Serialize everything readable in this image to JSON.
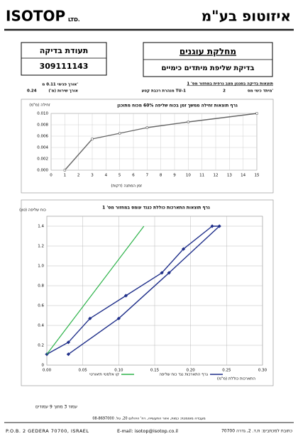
{
  "header": {
    "company_en": "ISOTOP",
    "company_en_suffix": "LTD.",
    "company_he": "איזוטופ בע\"מ"
  },
  "department_box": {
    "title": "מחלקת עוגנים",
    "subtitle": "בדיקת שליפת מיתדים כימיים"
  },
  "certificate_box": {
    "title": "תעודת בדיקה",
    "number": "309111143"
  },
  "info": {
    "heading": "תוצאות בדיקה בסגנון מצב גרפית במחזור מס' 1",
    "inner_length": "אורך פנימי 0.11 מ'",
    "service_length_label": "אורך שירות (מ')",
    "service_length": "0.24",
    "anchor_label": "מיתד כימי מס'",
    "anchor_number": "2",
    "site": "מנהרת רכבת קטע TU-1"
  },
  "charts": [
    {
      "type": "line",
      "title": "גרף תוצאות זחילה ממשך זמן בכוח שליפה 60% מכוח מתוכנן",
      "ylabel": "זחילה (מ\"מ)",
      "xlabel": "זמן המתנה (דקות)",
      "xlim": [
        0,
        15
      ],
      "xticks": [
        0,
        1,
        2,
        3,
        4,
        5,
        6,
        7,
        8,
        9,
        10,
        11,
        12,
        13,
        14,
        15
      ],
      "ylim": [
        0,
        0.01
      ],
      "yticks": [
        {
          "value": 0,
          "label": "0.000"
        },
        {
          "value": 0.002,
          "label": "0.002"
        },
        {
          "value": 0.004,
          "label": "0.004"
        },
        {
          "value": 0.006,
          "label": "0.006"
        },
        {
          "value": 0.008,
          "label": "0.008"
        },
        {
          "value": 0.01,
          "label": "0.010"
        }
      ],
      "grid": true,
      "series": [
        {
          "color": "#666666",
          "x": [
            1,
            3,
            5,
            7,
            10,
            15
          ],
          "values": [
            0,
            0.0055,
            0.0065,
            0.0075,
            0.0085,
            0.01
          ]
        }
      ]
    },
    {
      "type": "line",
      "title": "גרף תוצאות התארכות כוללת כנגד עומס במחזור מס' 1",
      "ylabel": "כוח שליפה (טון)",
      "xlabel": "התארכות כוללת (מ\"מ)",
      "xlim": [
        0,
        0.3
      ],
      "xticks": [
        {
          "value": 0,
          "label": "0.00"
        },
        {
          "value": 0.05,
          "label": "0.05"
        },
        {
          "value": 0.1,
          "label": "0.10"
        },
        {
          "value": 0.15,
          "label": "0.15"
        },
        {
          "value": 0.2,
          "label": "0.20"
        },
        {
          "value": 0.25,
          "label": "0.25"
        },
        {
          "value": 0.3,
          "label": "0.30"
        }
      ],
      "ylim": [
        0,
        1.5
      ],
      "yticks": [
        0,
        0.2,
        0.4,
        0.6,
        0.8,
        {
          "value": 1,
          "label": "1.0"
        },
        1.2,
        1.4
      ],
      "grid": true,
      "series": [
        {
          "name": "גרף התארכות נגד כוח שליפה",
          "color": "#1f2f8a",
          "x": [
            0,
            0.03,
            0.06,
            0.11,
            0.16,
            0.19,
            0.23,
            0.24,
            0.17,
            0.1,
            0.03
          ],
          "values": [
            0.11,
            0.23,
            0.47,
            0.7,
            0.93,
            1.17,
            1.4,
            1.4,
            0.93,
            0.47,
            0.11
          ]
        },
        {
          "name": "קו אלסטי תיאורטי",
          "color": "#2db34a",
          "x": [
            0,
            0.135
          ],
          "values": [
            0.11,
            1.4
          ]
        }
      ]
    }
  ],
  "footer": {
    "page": "עמוד 3 מתוך 9 עמודים",
    "lab_line": "מעבדה מוסמכת: כמות, אזור התעשייה, רח' היהלום 20, טל. 08-8697000",
    "address_en": "P.O.B. 2 GEDERA 70700, ISRAEL",
    "email": "E-mail: isotop@isotop.co.il",
    "address_he": "כתובת למכתבים: ת.ד. 2, גדרה 70700"
  }
}
